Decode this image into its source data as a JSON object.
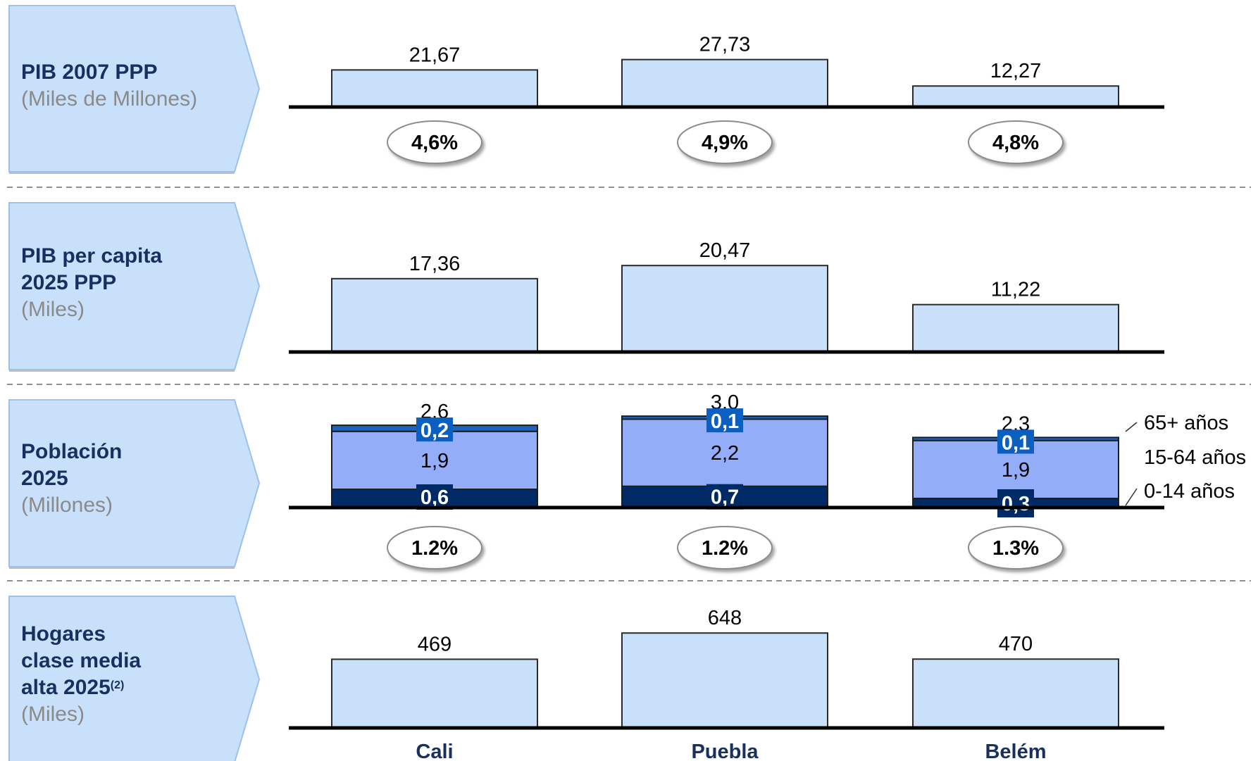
{
  "colors": {
    "bar_fill": "#c9e0fa",
    "bar_stroke": "#2b2b2b",
    "panel_fill": "#c9e0fa",
    "panel_stroke": "#9cc1ee",
    "label_title": "#17305f",
    "label_unit": "#8a8a8a",
    "seg_0_14": "#002a66",
    "seg_15_64": "#93adf9",
    "seg_65": "#1a64c0",
    "badge_dark": "#002a66",
    "badge_65": "#0a5fc1"
  },
  "rows": [
    {
      "title_lines": [
        "PIB 2007 PPP"
      ],
      "unit": "(Miles de Millones)"
    },
    {
      "title_lines": [
        "PIB per capita",
        "2025 PPP"
      ],
      "unit": "(Miles)"
    },
    {
      "title_lines": [
        "Población",
        "2025"
      ],
      "unit": "(Millones)"
    },
    {
      "title_lines": [
        "Hogares",
        "clase media",
        "alta 2025"
      ],
      "title_sup": "(2)",
      "unit": "(Miles)"
    }
  ],
  "chart_data": [
    {
      "type": "bar",
      "categories": [
        "Cali",
        "Puebla",
        "Belém"
      ],
      "values": [
        21.67,
        27.73,
        12.27
      ],
      "value_labels": [
        "21,67",
        "27,73",
        "12,27"
      ],
      "growth": [
        "4,6%",
        "4,9%",
        "4,8%"
      ]
    },
    {
      "type": "bar",
      "categories": [
        "Cali",
        "Puebla",
        "Belém"
      ],
      "values": [
        17.36,
        20.47,
        11.22
      ],
      "value_labels": [
        "17,36",
        "20,47",
        "11,22"
      ]
    },
    {
      "type": "stacked_bar",
      "categories": [
        "Cali",
        "Puebla",
        "Belém"
      ],
      "totals": [
        "2,6",
        "3,0",
        "2,3"
      ],
      "series": [
        {
          "name": "0-14 años",
          "values": [
            0.6,
            0.7,
            0.3
          ],
          "labels": [
            "0,6",
            "0,7",
            "0,3"
          ]
        },
        {
          "name": "15-64 años",
          "values": [
            1.9,
            2.2,
            1.9
          ],
          "labels": [
            "1,9",
            "2,2",
            "1,9"
          ]
        },
        {
          "name": "65+ años",
          "values": [
            0.2,
            0.1,
            0.1
          ],
          "labels": [
            "0,2",
            "0,1",
            "0,1"
          ]
        }
      ],
      "legend_order": [
        "65+ años",
        "15-64 años",
        "0-14 años"
      ],
      "growth": [
        "1.2%",
        "1.2%",
        "1.3%"
      ]
    },
    {
      "type": "bar",
      "categories": [
        "Cali",
        "Puebla",
        "Belém"
      ],
      "values": [
        469,
        648,
        470
      ],
      "value_labels": [
        "469",
        "648",
        "470"
      ]
    }
  ],
  "categories": [
    "Cali",
    "Puebla",
    "Belém"
  ]
}
